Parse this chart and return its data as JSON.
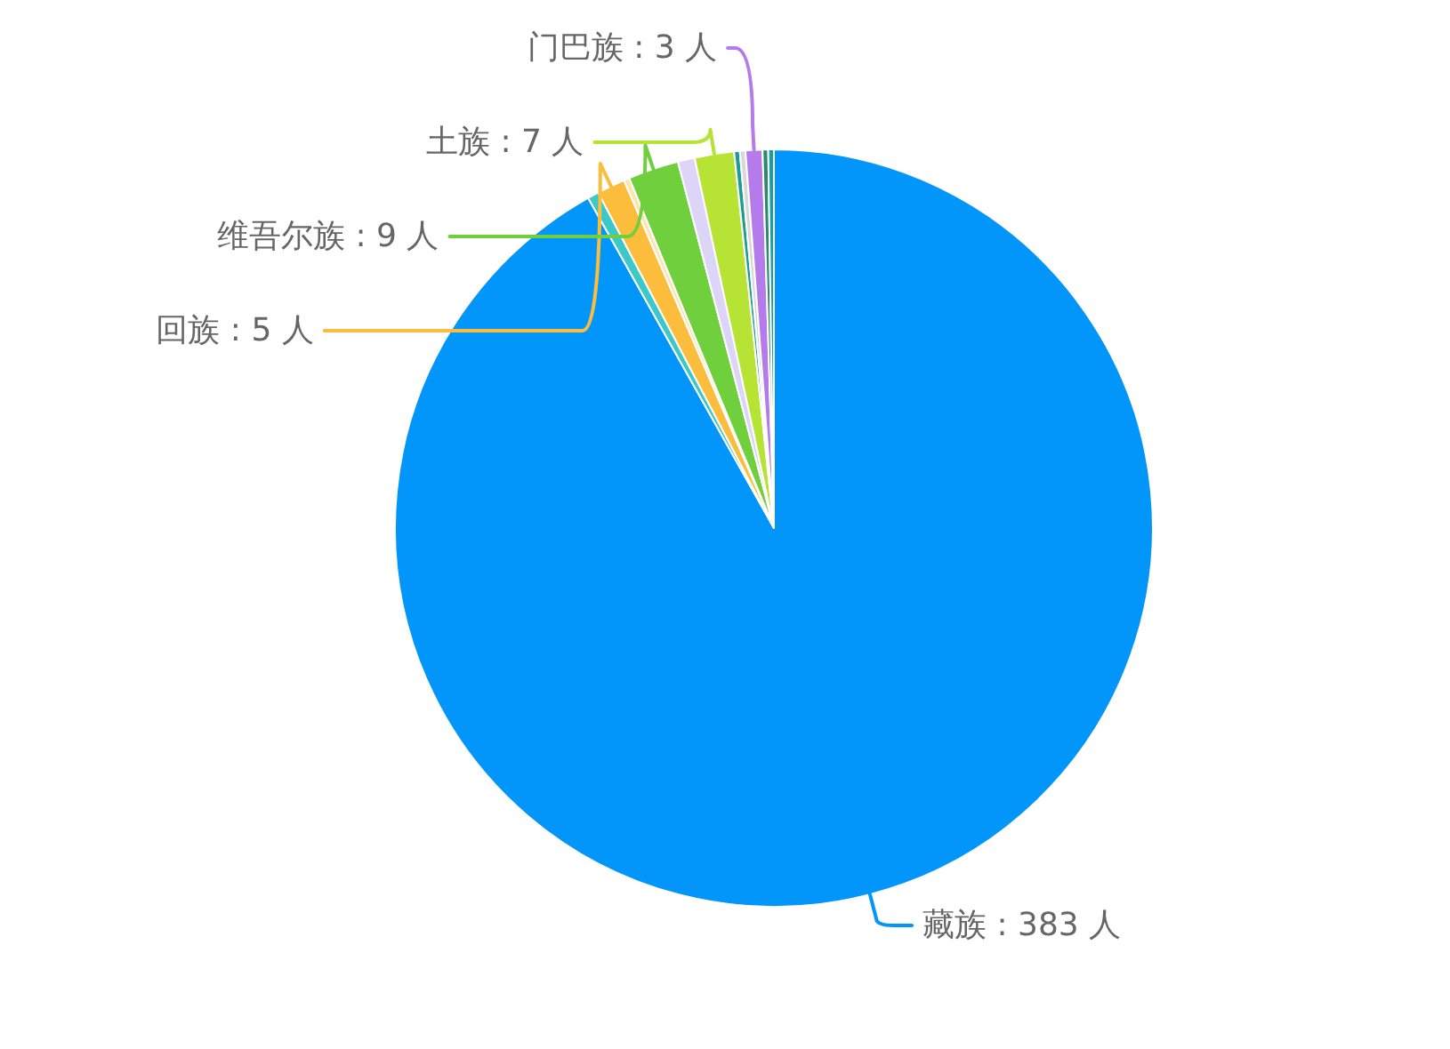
{
  "chart_data": {
    "type": "pie",
    "categories": [
      "藏族 : 383 人",
      null,
      "回族 : 5 人",
      null,
      "维吾尔族 : 9 人",
      null,
      "土族 : 7 人",
      null,
      null,
      "门巴族 : 3 人",
      null,
      null
    ],
    "values": [
      383,
      2,
      5,
      1,
      9,
      3,
      7,
      1,
      1,
      3,
      1,
      1
    ],
    "colors": [
      "#0396fa",
      "#3cc8c8",
      "#fbbd3b",
      "#fde5b0",
      "#6fcf3c",
      "#ddd5f7",
      "#b7e334",
      "#1a9e8f",
      "#d8d8d8",
      "#b57bea",
      "#2b8a6e",
      "#18a0a0"
    ]
  }
}
